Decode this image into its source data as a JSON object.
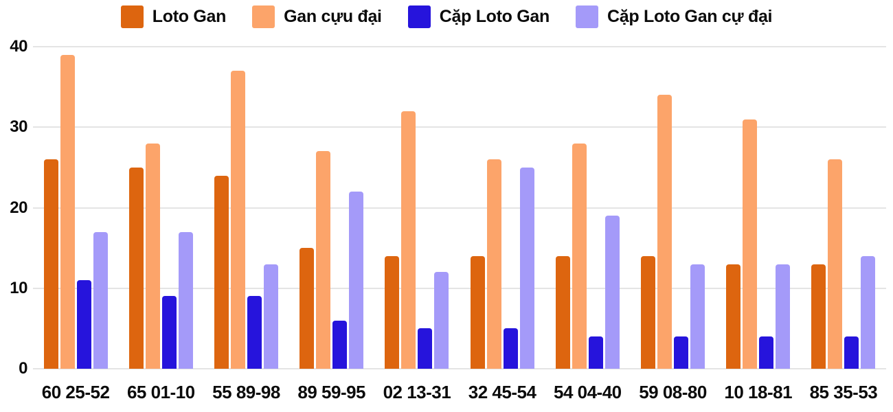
{
  "chart_data": {
    "type": "bar",
    "title": "",
    "categories": [
      "60 25-52",
      "65 01-10",
      "55 89-98",
      "89 59-95",
      "02 13-31",
      "32 45-54",
      "54 04-40",
      "59 08-80",
      "10 18-81",
      "85 35-53"
    ],
    "series": [
      {
        "name": "Loto Gan",
        "color": "#DD650F",
        "values": [
          26,
          25,
          24,
          15,
          14,
          14,
          14,
          14,
          13,
          13
        ]
      },
      {
        "name": "Gan cựu đại",
        "color": "#FCA46A",
        "values": [
          39,
          28,
          37,
          27,
          32,
          26,
          28,
          34,
          31,
          26
        ]
      },
      {
        "name": "Cặp Loto Gan",
        "color": "#2614DC",
        "values": [
          11,
          9,
          9,
          6,
          5,
          5,
          4,
          4,
          4,
          4
        ]
      },
      {
        "name": "Cặp Loto Gan cự đại",
        "color": "#A49AF9",
        "values": [
          17,
          17,
          13,
          22,
          12,
          25,
          19,
          13,
          13,
          14
        ]
      }
    ],
    "xlabel": "",
    "ylabel": "",
    "ylim": [
      0,
      40
    ],
    "yticks": [
      0,
      10,
      20,
      30,
      40
    ],
    "grid": true,
    "legend_position": "top"
  },
  "style": {
    "grid_color": "#E4E4E4",
    "text_color": "#0B0B0B",
    "background": "#FFFFFF"
  }
}
